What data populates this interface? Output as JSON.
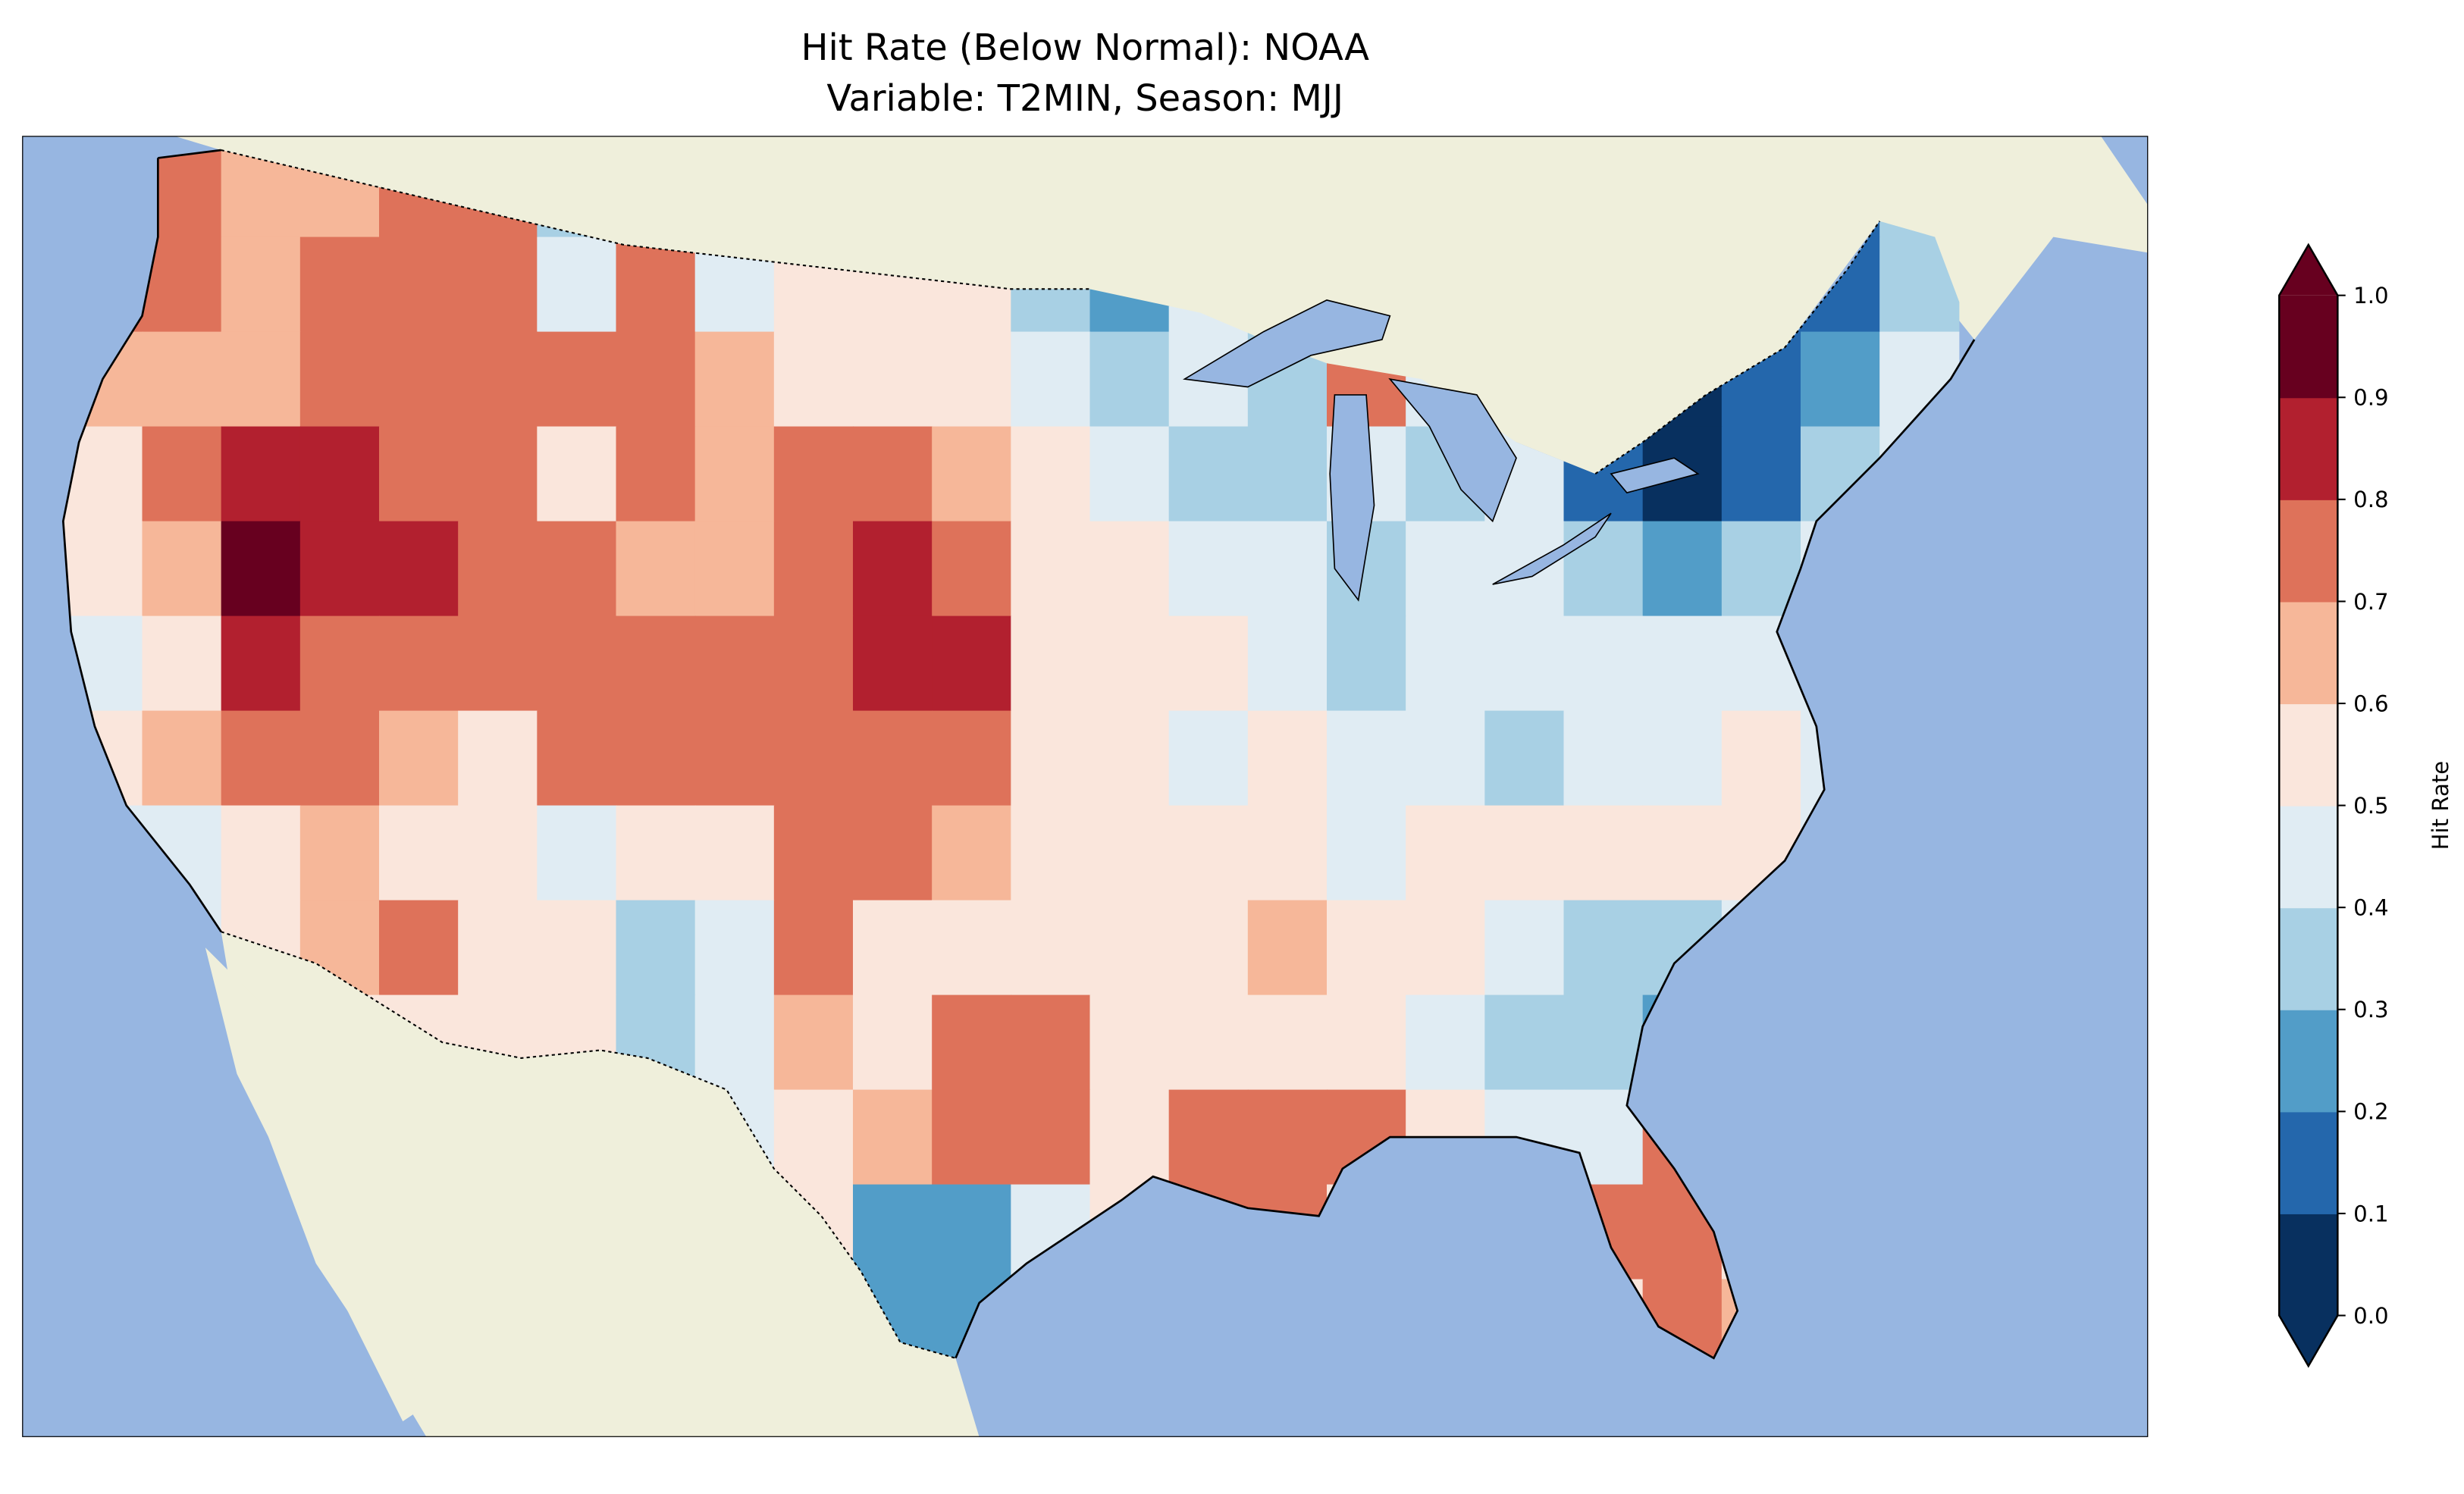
{
  "chart_data": {
    "type": "heatmap",
    "title": "Hit Rate (Below Normal): NOAA",
    "subtitle": "Variable: T2MIN, Season: MJJ",
    "colorbar": {
      "label": "Hit Rate",
      "range": [
        0.0,
        1.0
      ],
      "extend": "both",
      "ticks": [
        "0.0",
        "0.1",
        "0.2",
        "0.3",
        "0.4",
        "0.5",
        "0.6",
        "0.7",
        "0.8",
        "0.9",
        "1.0"
      ],
      "bin_colors": [
        "#08305f",
        "#2467ac",
        "#529dc8",
        "#a8d0e4",
        "#e0ecf3",
        "#fae6dc",
        "#f6b799",
        "#de725a",
        "#b2202f",
        "#67001f"
      ]
    },
    "grid_note": "coarse approximation of the gridded hit rate field, rows north to south, columns west to east",
    "grid": [
      [
        0.65,
        0.72,
        0.65,
        0.65,
        0.72,
        0.72,
        0.3,
        0.45,
        0.55,
        0.55,
        0.55,
        0.55,
        0.35,
        0.45,
        0.45,
        0.45,
        0.75,
        0.45,
        0.45,
        0.45,
        0.3,
        0.3,
        0.15,
        0.3
      ],
      [
        0.72,
        0.75,
        0.62,
        0.72,
        0.75,
        0.75,
        0.45,
        0.72,
        0.45,
        0.55,
        0.55,
        0.55,
        0.3,
        0.25,
        0.45,
        0.45,
        0.75,
        0.45,
        0.45,
        0.45,
        0.3,
        0.15,
        0.15,
        0.35
      ],
      [
        0.65,
        0.62,
        0.65,
        0.75,
        0.75,
        0.72,
        0.75,
        0.75,
        0.62,
        0.55,
        0.55,
        0.55,
        0.45,
        0.35,
        0.45,
        0.35,
        0.75,
        0.45,
        0.35,
        0.45,
        0.05,
        0.15,
        0.25,
        0.45
      ],
      [
        0.55,
        0.72,
        0.85,
        0.82,
        0.75,
        0.72,
        0.55,
        0.72,
        0.65,
        0.72,
        0.75,
        0.62,
        0.55,
        0.45,
        0.35,
        0.35,
        0.45,
        0.35,
        0.45,
        0.15,
        0.05,
        0.15,
        0.35,
        0.45
      ],
      [
        0.55,
        0.65,
        0.95,
        0.85,
        0.85,
        0.75,
        0.75,
        0.65,
        0.65,
        0.75,
        0.82,
        0.75,
        0.55,
        0.55,
        0.45,
        0.45,
        0.35,
        0.45,
        0.45,
        0.35,
        0.2,
        0.35,
        0.45,
        0.45
      ],
      [
        0.45,
        0.55,
        0.85,
        0.75,
        0.72,
        0.75,
        0.75,
        0.75,
        0.72,
        0.75,
        0.85,
        0.82,
        0.55,
        0.55,
        0.55,
        0.45,
        0.35,
        0.45,
        0.45,
        0.45,
        0.45,
        0.45,
        0.45,
        0.45
      ],
      [
        0.55,
        0.65,
        0.75,
        0.75,
        0.65,
        0.55,
        0.72,
        0.72,
        0.72,
        0.72,
        0.72,
        0.72,
        0.55,
        0.55,
        0.45,
        0.55,
        0.45,
        0.45,
        0.35,
        0.45,
        0.45,
        0.55,
        0.45,
        0.45
      ],
      [
        0.45,
        0.45,
        0.55,
        0.65,
        0.55,
        0.55,
        0.45,
        0.55,
        0.55,
        0.72,
        0.72,
        0.65,
        0.55,
        0.55,
        0.55,
        0.55,
        0.45,
        0.55,
        0.55,
        0.55,
        0.55,
        0.55,
        0.45,
        0.45
      ],
      [
        0.45,
        0.45,
        0.55,
        0.65,
        0.72,
        0.55,
        0.55,
        0.35,
        0.45,
        0.72,
        0.55,
        0.55,
        0.55,
        0.55,
        0.55,
        0.65,
        0.55,
        0.55,
        0.45,
        0.35,
        0.35,
        0.45,
        0.45,
        0.45
      ],
      [
        0.45,
        0.45,
        0.55,
        0.55,
        0.55,
        0.55,
        0.55,
        0.35,
        0.45,
        0.65,
        0.55,
        0.72,
        0.72,
        0.55,
        0.55,
        0.55,
        0.55,
        0.45,
        0.35,
        0.35,
        0.25,
        0.45,
        0.45,
        0.45
      ],
      [
        0.55,
        0.55,
        0.55,
        0.55,
        0.55,
        0.55,
        0.55,
        0.45,
        0.45,
        0.55,
        0.65,
        0.75,
        0.75,
        0.55,
        0.72,
        0.72,
        0.75,
        0.55,
        0.45,
        0.45,
        0.72,
        0.72,
        0.45,
        0.45
      ],
      [
        0.55,
        0.55,
        0.55,
        0.55,
        0.55,
        0.55,
        0.55,
        0.55,
        0.55,
        0.55,
        0.25,
        0.25,
        0.45,
        0.55,
        0.72,
        0.72,
        0.55,
        0.55,
        0.55,
        0.72,
        0.72,
        0.55,
        0.45,
        0.45
      ],
      [
        0.55,
        0.55,
        0.55,
        0.55,
        0.55,
        0.55,
        0.55,
        0.55,
        0.55,
        0.55,
        0.25,
        0.25,
        0.45,
        0.55,
        0.55,
        0.55,
        0.55,
        0.55,
        0.55,
        0.55,
        0.72,
        0.65,
        0.45,
        0.45
      ]
    ]
  }
}
